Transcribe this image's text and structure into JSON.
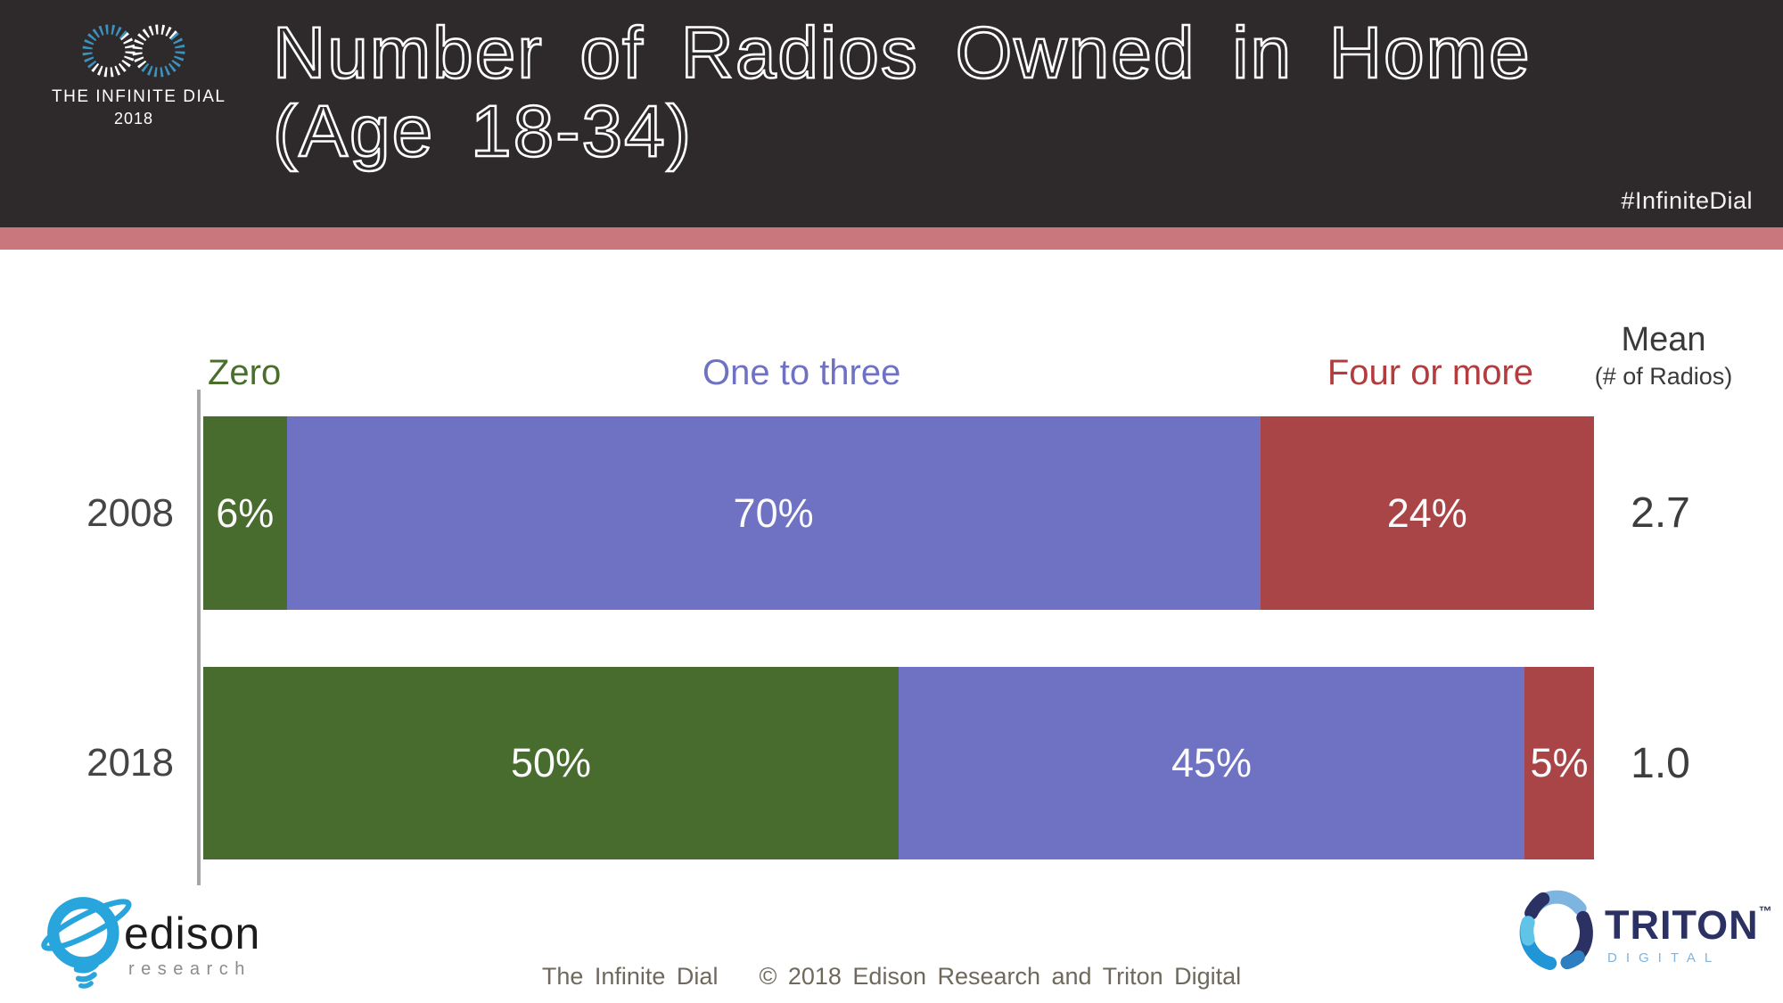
{
  "header": {
    "logo_line1": "THE INFINITE DIAL",
    "logo_line2": "2018",
    "title_line1": "Number of Radios Owned in Home",
    "title_line2": "(Age 18-34)",
    "hashtag": "#InfiniteDial"
  },
  "chart_data": {
    "type": "bar",
    "orientation": "horizontal",
    "stacked": true,
    "categories": [
      "2008",
      "2018"
    ],
    "series": [
      {
        "name": "Zero",
        "values": [
          6,
          50
        ],
        "color": "#486c2e",
        "label_color": "#4a6e2c"
      },
      {
        "name": "One to three",
        "values": [
          70,
          45
        ],
        "color": "#6f72c3",
        "label_color": "#6f72c3"
      },
      {
        "name": "Four or more",
        "values": [
          24,
          5
        ],
        "color": "#a94546",
        "label_color": "#b23c3e"
      }
    ],
    "value_suffix": "%",
    "xlim": [
      0,
      100
    ],
    "grid": false,
    "legend_position": "top",
    "mean_column": {
      "label": "Mean",
      "sublabel": "(# of Radios)",
      "values": [
        "2.7",
        "1.0"
      ]
    }
  },
  "footer": {
    "edison_name": "edison",
    "edison_sub": "research",
    "credit_left": "The Infinite Dial",
    "credit_right": "© 2018 Edison Research and Triton Digital",
    "triton_name": "TRITON",
    "triton_tm": "™",
    "triton_sub": "DIGITAL"
  },
  "colors": {
    "header_bg": "#2e2a2b",
    "stripe": "#c9767c",
    "axis": "#a6a6a6",
    "edison_blue": "#29a5dd",
    "triton_navy": "#2b3263",
    "triton_light_blue": "#7db4e0"
  }
}
